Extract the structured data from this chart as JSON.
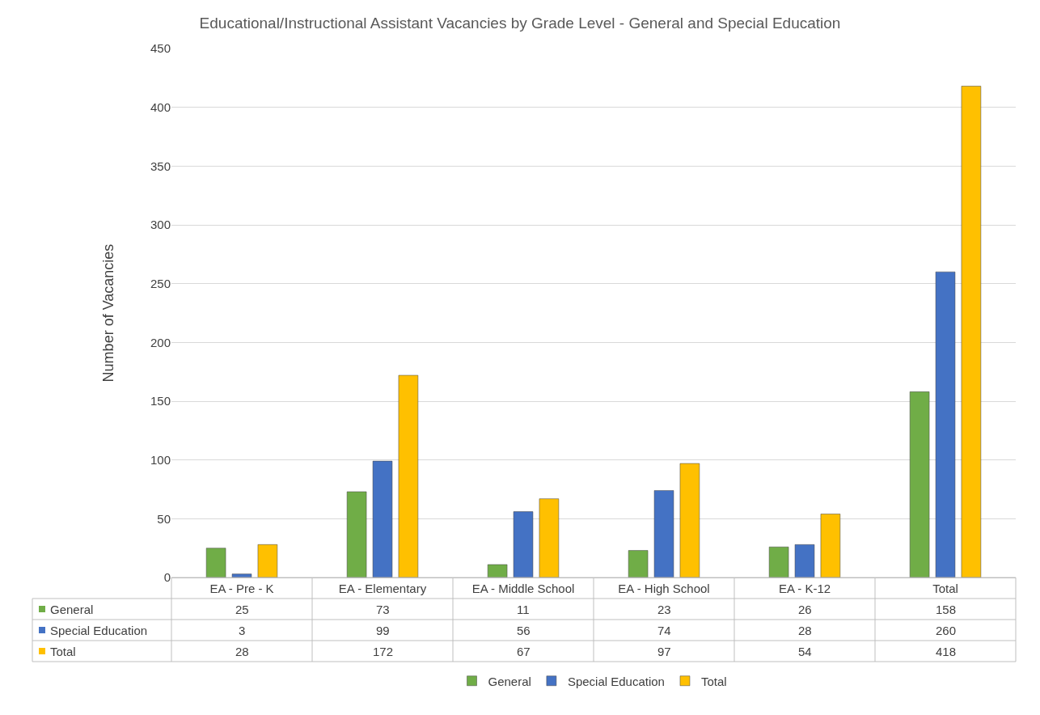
{
  "chart_data": {
    "type": "bar",
    "title": "Educational/Instructional Assistant Vacancies by Grade Level - General and Special Education",
    "ylabel": "Number of Vacancies",
    "categories": [
      "EA - Pre - K",
      "EA - Elementary",
      "EA - Middle School",
      "EA - High School",
      "EA - K-12",
      "Total"
    ],
    "series": [
      {
        "name": "General",
        "color": "#70ad47",
        "values": [
          25,
          73,
          11,
          23,
          26,
          158
        ]
      },
      {
        "name": "Special Education",
        "color": "#4472c4",
        "values": [
          3,
          99,
          56,
          74,
          28,
          260
        ]
      },
      {
        "name": "Total",
        "color": "#ffc000",
        "values": [
          28,
          172,
          67,
          97,
          54,
          418
        ]
      }
    ],
    "ylim": [
      0,
      450
    ],
    "yticks": [
      0,
      50,
      100,
      150,
      200,
      250,
      300,
      350,
      400,
      450
    ],
    "grid": "y",
    "legend": "bottom",
    "data_labels": true
  }
}
